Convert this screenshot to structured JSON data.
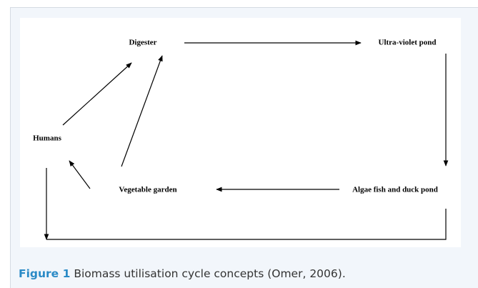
{
  "nodes": [
    {
      "label": "Digester"
    },
    {
      "label": "Ultra-violet pond"
    },
    {
      "label": "Humans"
    },
    {
      "label": "Vegetable garden"
    },
    {
      "label": "Algae fish and duck pond"
    }
  ],
  "caption": {
    "label": "Figure 1",
    "text": "Biomass utilisation cycle concepts (Omer, 2006)."
  }
}
